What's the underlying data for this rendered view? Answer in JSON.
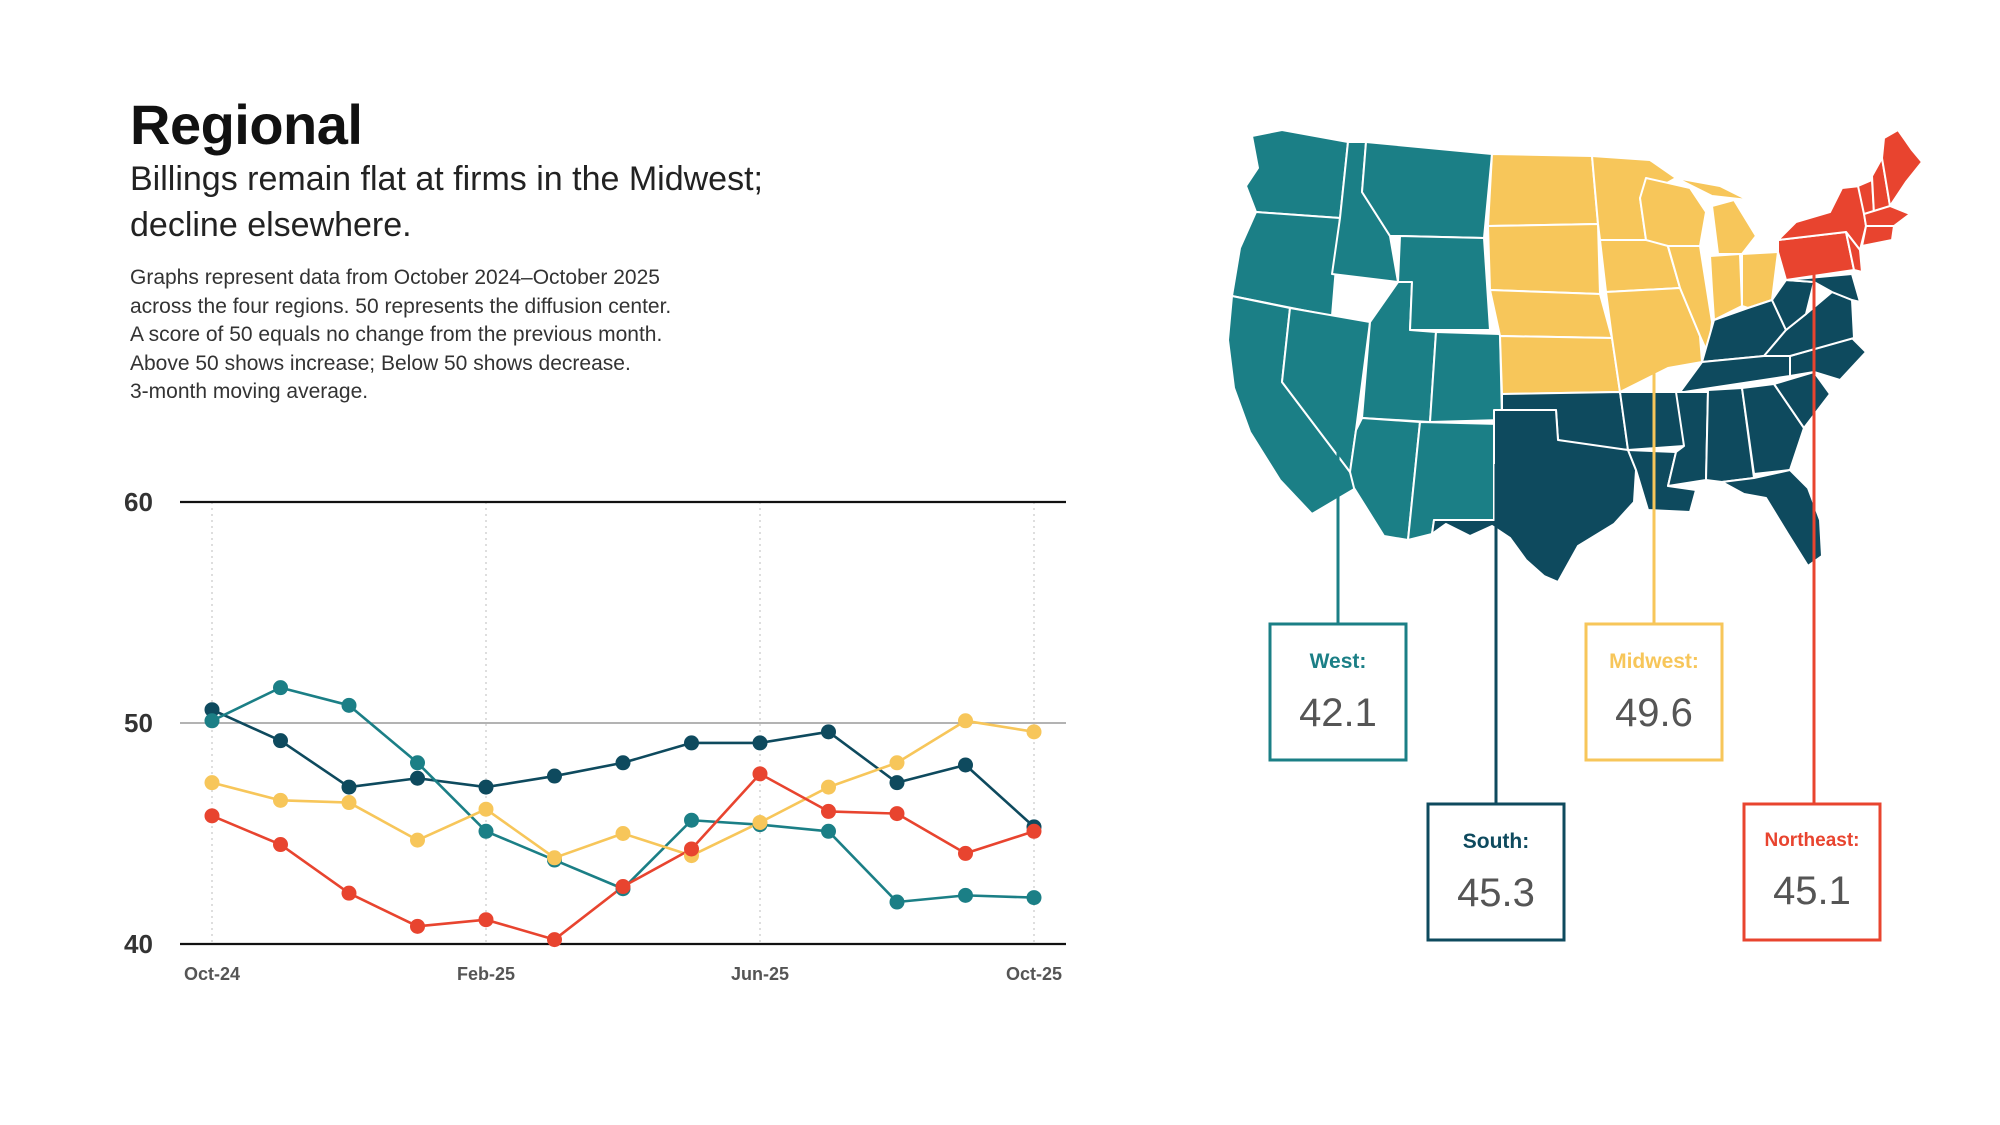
{
  "header": {
    "title": "Regional",
    "subtitle_lines": [
      "Billings remain flat at firms in the Midwest;",
      "decline elsewhere."
    ],
    "notes": [
      "Graphs represent data from October 2024–October 2025",
      "across the four regions. 50 represents the diffusion center.",
      "A score of 50 equals no change from the previous month.",
      "Above 50 shows increase; Below 50 shows decrease.",
      "3-month moving average."
    ]
  },
  "colors": {
    "west": "#1b7f86",
    "south": "#0e4a5e",
    "midwest": "#f7c65a",
    "northeast": "#e8442f"
  },
  "chart_data": {
    "type": "line",
    "x": [
      "Oct-24",
      "Nov-24",
      "Dec-24",
      "Jan-25",
      "Feb-25",
      "Mar-25",
      "Apr-25",
      "May-25",
      "Jun-25",
      "Jul-25",
      "Aug-25",
      "Sep-25",
      "Oct-25"
    ],
    "x_tick_labels": [
      "Oct-24",
      "Feb-25",
      "Jun-25",
      "Oct-25"
    ],
    "y_ticks": [
      40,
      50,
      60
    ],
    "ylim": [
      40,
      60
    ],
    "grid": "vertical dotted at labelled months",
    "series": [
      {
        "key": "south",
        "values": [
          50.6,
          49.2,
          47.1,
          47.5,
          47.1,
          47.6,
          48.2,
          49.1,
          49.1,
          49.6,
          47.3,
          48.1,
          45.3
        ]
      },
      {
        "key": "west",
        "values": [
          50.1,
          51.6,
          50.8,
          48.2,
          45.1,
          43.8,
          42.5,
          45.6,
          45.4,
          45.1,
          41.9,
          42.2,
          42.1
        ]
      },
      {
        "key": "midwest",
        "values": [
          47.3,
          46.5,
          46.4,
          44.7,
          46.1,
          43.9,
          45.0,
          44.0,
          45.5,
          47.1,
          48.2,
          50.1,
          49.6
        ]
      },
      {
        "key": "northeast",
        "values": [
          45.8,
          44.5,
          42.3,
          40.8,
          41.1,
          40.2,
          42.6,
          44.3,
          47.7,
          46.0,
          45.9,
          44.1,
          45.1
        ]
      }
    ]
  },
  "map": {
    "regions": [
      "west",
      "midwest",
      "south",
      "northeast"
    ]
  },
  "callouts": {
    "west": {
      "label": "West:",
      "value": "42.1"
    },
    "south": {
      "label": "South:",
      "value": "45.3"
    },
    "midwest": {
      "label": "Midwest:",
      "value": "49.6"
    },
    "northeast": {
      "label": "Northeast:",
      "value": "45.1"
    }
  }
}
